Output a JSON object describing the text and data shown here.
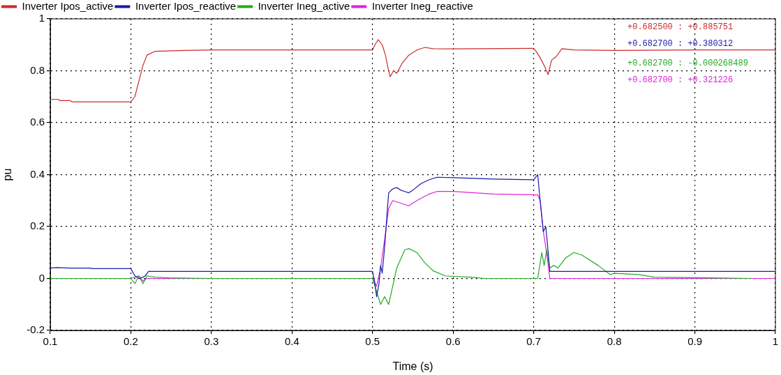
{
  "chart_data": {
    "type": "line",
    "xlabel": "Time (s)",
    "ylabel": "pu",
    "xlim": [
      0.1,
      1
    ],
    "xticks": [
      0.1,
      0.2,
      0.3,
      0.4,
      0.5,
      0.6,
      0.7,
      0.8,
      0.9,
      1
    ],
    "ylim": [
      -0.2,
      1
    ],
    "yticks": [
      -0.2,
      0,
      0.2,
      0.4,
      0.6,
      0.8,
      1
    ],
    "grid": true,
    "legend": "top",
    "marker": "none",
    "line_style": "solid",
    "series": [
      {
        "name": "Inverter Ipos_active",
        "color": "#cc2a2a",
        "x": [
          0.1,
          0.11,
          0.112,
          0.125,
          0.127,
          0.2,
          0.205,
          0.21,
          0.215,
          0.22,
          0.23,
          0.25,
          0.3,
          0.5,
          0.503,
          0.507,
          0.512,
          0.516,
          0.52,
          0.522,
          0.526,
          0.53,
          0.537,
          0.545,
          0.555,
          0.565,
          0.575,
          0.6,
          0.7,
          0.703,
          0.708,
          0.713,
          0.718,
          0.722,
          0.728,
          0.735,
          0.75,
          0.8,
          0.9,
          1
        ],
        "values": [
          0.69,
          0.69,
          0.685,
          0.685,
          0.68,
          0.68,
          0.7,
          0.76,
          0.82,
          0.86,
          0.875,
          0.877,
          0.88,
          0.88,
          0.9,
          0.92,
          0.9,
          0.86,
          0.8,
          0.777,
          0.8,
          0.79,
          0.83,
          0.86,
          0.88,
          0.89,
          0.885,
          0.884,
          0.886,
          0.875,
          0.85,
          0.82,
          0.785,
          0.84,
          0.855,
          0.885,
          0.88,
          0.878,
          0.88,
          0.88
        ]
      },
      {
        "name": "Inverter Ipos_reactive",
        "color": "#1a1aaa",
        "x": [
          0.1,
          0.108,
          0.125,
          0.15,
          0.152,
          0.2,
          0.205,
          0.21,
          0.215,
          0.218,
          0.222,
          0.5,
          0.503,
          0.505,
          0.508,
          0.51,
          0.512,
          0.515,
          0.518,
          0.52,
          0.525,
          0.53,
          0.535,
          0.54,
          0.545,
          0.55,
          0.56,
          0.57,
          0.58,
          0.6,
          0.65,
          0.7,
          0.705,
          0.708,
          0.712,
          0.715,
          0.718,
          0.72,
          0.8,
          0.9,
          1
        ],
        "values": [
          0.04,
          0.042,
          0.04,
          0.04,
          0.038,
          0.038,
          0.01,
          0.0,
          0.005,
          0.01,
          0.027,
          0.027,
          -0.02,
          -0.07,
          -0.02,
          0.05,
          0.02,
          0.12,
          0.25,
          0.33,
          0.345,
          0.35,
          0.34,
          0.335,
          0.33,
          0.34,
          0.365,
          0.38,
          0.39,
          0.388,
          0.383,
          0.38,
          0.4,
          0.3,
          0.18,
          0.2,
          0.1,
          0.027,
          0.027,
          0.027,
          0.027
        ]
      },
      {
        "name": "Inverter Ineg_active",
        "color": "#22aa22",
        "x": [
          0.1,
          0.2,
          0.205,
          0.21,
          0.215,
          0.22,
          0.23,
          0.25,
          0.3,
          0.5,
          0.505,
          0.51,
          0.515,
          0.52,
          0.525,
          0.53,
          0.54,
          0.545,
          0.555,
          0.565,
          0.575,
          0.59,
          0.62,
          0.64,
          0.705,
          0.71,
          0.713,
          0.716,
          0.72,
          0.725,
          0.73,
          0.74,
          0.75,
          0.76,
          0.78,
          0.795,
          0.8,
          0.83,
          0.85,
          0.9,
          0.97
        ],
        "values": [
          0,
          0,
          -0.02,
          0.01,
          -0.02,
          0.01,
          0.005,
          0.002,
          0,
          0,
          -0.05,
          -0.1,
          -0.07,
          -0.1,
          -0.03,
          0.04,
          0.11,
          0.115,
          0.1,
          0.06,
          0.03,
          0.01,
          0.005,
          0,
          0,
          0.1,
          0.05,
          0.11,
          0.04,
          0.05,
          0.04,
          0.08,
          0.1,
          0.09,
          0.05,
          0.015,
          0.02,
          0.015,
          0.005,
          0.003,
          0
        ]
      },
      {
        "name": "Inverter Ineg_reactive",
        "color": "#dd22dd",
        "x": [
          0.1,
          0.2,
          0.21,
          0.215,
          0.22,
          0.5,
          0.505,
          0.51,
          0.515,
          0.52,
          0.525,
          0.535,
          0.545,
          0.555,
          0.57,
          0.58,
          0.6,
          0.65,
          0.705,
          0.708,
          0.712,
          0.716,
          0.72,
          0.8,
          0.9,
          1
        ],
        "values": [
          0,
          0,
          0.01,
          -0.01,
          0,
          0,
          -0.03,
          0.04,
          0.15,
          0.27,
          0.3,
          0.29,
          0.28,
          0.3,
          0.325,
          0.335,
          0.335,
          0.325,
          0.322,
          0.3,
          0.18,
          0.1,
          0,
          0,
          0,
          0
        ]
      }
    ],
    "annotations": [
      "+0.682500 : +0.885751",
      "+0.682700 : +0.380312",
      "+0.682700 : -0.000268489",
      "+0.682700 : +0.321226"
    ]
  }
}
